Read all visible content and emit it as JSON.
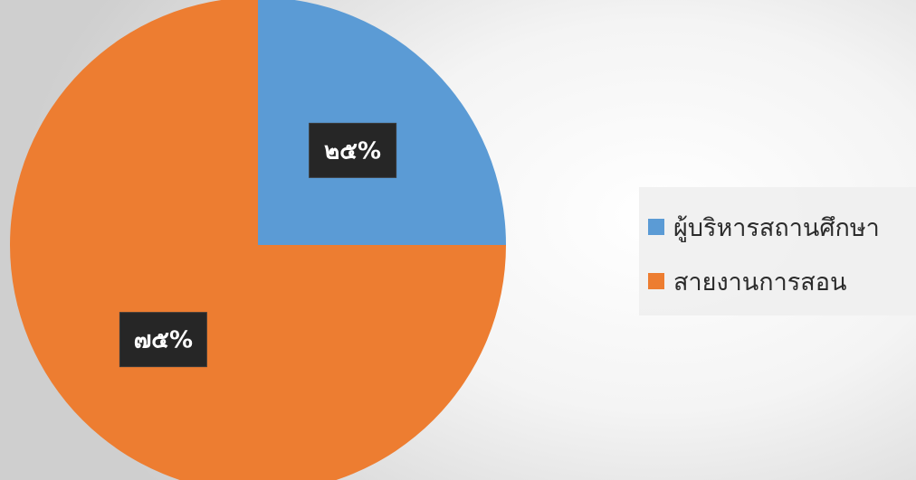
{
  "chart_data": {
    "type": "pie",
    "title": "",
    "categories": [
      "ผู้บริหารสถานศึกษา",
      "สายงานการสอน"
    ],
    "values": [
      25,
      75
    ],
    "data_labels": [
      "๒๕%",
      "๗๕%"
    ],
    "colors": [
      "#5b9bd5",
      "#ed7d31"
    ],
    "start_angle": "12 o'clock, clockwise",
    "legend_position": "right"
  }
}
